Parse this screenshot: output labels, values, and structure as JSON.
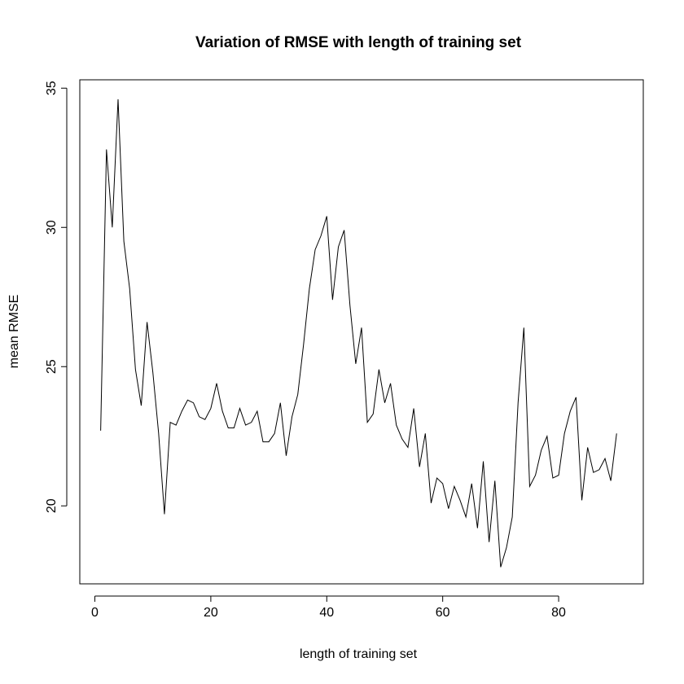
{
  "chart_data": {
    "type": "line",
    "title": "Variation of RMSE with length of training set",
    "xlabel": "length of training set",
    "ylabel": "mean RMSE",
    "xlim": [
      -2.6,
      94.6
    ],
    "ylim": [
      17.2,
      35.3
    ],
    "xticks": [
      0,
      20,
      40,
      60,
      80
    ],
    "yticks": [
      20,
      25,
      30,
      35
    ],
    "xtick_labels": [
      "0",
      "20",
      "40",
      "60",
      "80"
    ],
    "ytick_labels": [
      "20",
      "25",
      "30",
      "35"
    ],
    "grid": false,
    "line_color": "#000000",
    "series": [
      {
        "x": [
          1,
          2,
          3,
          4,
          5,
          6,
          7,
          8,
          9,
          10,
          11,
          12,
          13,
          14,
          15,
          16,
          17,
          18,
          19,
          20,
          21,
          22,
          23,
          24,
          25,
          26,
          27,
          28,
          29,
          30,
          31,
          32,
          33,
          34,
          35,
          36,
          37,
          38,
          39,
          40,
          41,
          42,
          43,
          44,
          45,
          46,
          47,
          48,
          49,
          50,
          51,
          52,
          53,
          54,
          55,
          56,
          57,
          58,
          59,
          60,
          61,
          62,
          63,
          64,
          65,
          66,
          67,
          68,
          69,
          70,
          71,
          72,
          73,
          74,
          75,
          76,
          77,
          78,
          79,
          80,
          81,
          82,
          83,
          84,
          85,
          86,
          87,
          88,
          89,
          90
        ],
        "values": [
          22.7,
          32.8,
          30.0,
          34.6,
          29.5,
          27.8,
          24.9,
          23.6,
          26.6,
          24.8,
          22.6,
          19.7,
          23.0,
          22.9,
          23.4,
          23.8,
          23.7,
          23.2,
          23.1,
          23.5,
          24.4,
          23.4,
          22.8,
          22.8,
          23.5,
          22.9,
          23.0,
          23.4,
          22.3,
          22.3,
          22.6,
          23.7,
          21.8,
          23.2,
          24.0,
          25.8,
          27.8,
          29.2,
          29.7,
          30.4,
          27.4,
          29.3,
          29.9,
          27.2,
          25.1,
          26.4,
          23.0,
          23.3,
          24.9,
          23.7,
          24.4,
          22.9,
          22.4,
          22.1,
          23.5,
          21.4,
          22.6,
          20.1,
          21.0,
          20.8,
          19.9,
          20.7,
          20.2,
          19.6,
          20.8,
          19.2,
          21.6,
          18.7,
          20.9,
          17.8,
          18.5,
          19.6,
          23.7,
          26.4,
          20.7,
          21.1,
          22.0,
          22.5,
          21.0,
          21.1,
          22.6,
          23.4,
          23.9,
          20.2,
          22.1,
          21.2,
          21.3,
          21.7,
          20.9,
          22.6
        ]
      }
    ]
  }
}
